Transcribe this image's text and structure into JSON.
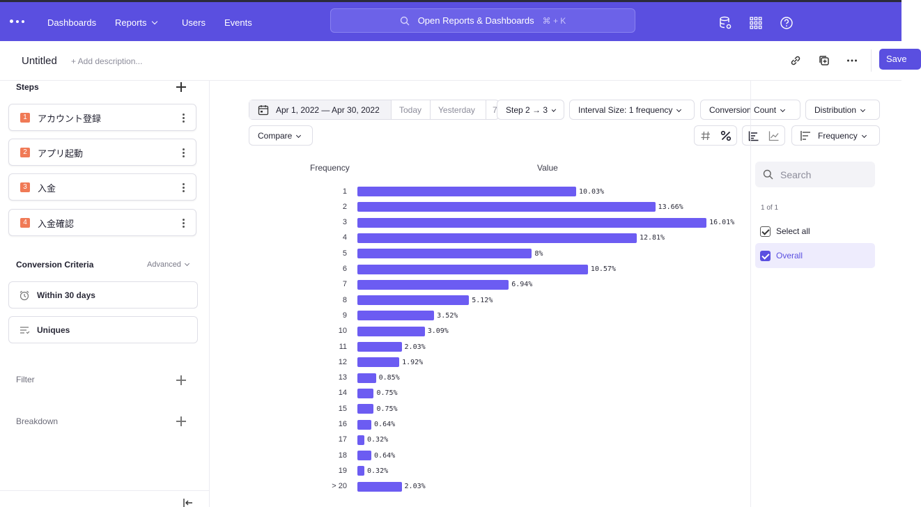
{
  "nav": {
    "links": [
      "Dashboards",
      "Reports",
      "Users",
      "Events"
    ],
    "search_placeholder": "Open Reports & Dashboards",
    "search_shortcut": "⌘ + K"
  },
  "header": {
    "title": "Untitled",
    "description_placeholder": "+ Add description...",
    "save_label": "Save"
  },
  "sidebar": {
    "steps_title": "Steps",
    "steps": [
      {
        "num": "1",
        "name": "アカウント登録"
      },
      {
        "num": "2",
        "name": "アプリ起動"
      },
      {
        "num": "3",
        "name": "入金"
      },
      {
        "num": "4",
        "name": "入金確認"
      }
    ],
    "criteria_title": "Conversion Criteria",
    "advanced_label": "Advanced",
    "window_label": "Within 30 days",
    "counting_label": "Uniques",
    "filter_title": "Filter",
    "breakdown_title": "Breakdown"
  },
  "controls": {
    "date_range": "Apr 1, 2022 — Apr 30, 2022",
    "today": "Today",
    "yesterday": "Yesterday",
    "seven": "7",
    "step_selector": "Step 2 → 3",
    "interval": "Interval Size: 1 frequency",
    "metric": "Conversion Count",
    "view": "Distribution",
    "compare": "Compare",
    "sort": "Frequency"
  },
  "chart": {
    "col_frequency": "Frequency",
    "col_value": "Value"
  },
  "chart_data": {
    "type": "bar",
    "orientation": "horizontal",
    "categories": [
      "1",
      "2",
      "3",
      "4",
      "5",
      "6",
      "7",
      "8",
      "9",
      "10",
      "11",
      "12",
      "13",
      "14",
      "15",
      "16",
      "17",
      "18",
      "19",
      "> 20"
    ],
    "values": [
      10.03,
      13.66,
      16.01,
      12.81,
      8,
      10.57,
      6.94,
      5.12,
      3.52,
      3.09,
      2.03,
      1.92,
      0.85,
      0.75,
      0.75,
      0.64,
      0.32,
      0.64,
      0.32,
      2.03
    ],
    "value_labels": [
      "10.03%",
      "13.66%",
      "16.01%",
      "12.81%",
      "8%",
      "10.57%",
      "6.94%",
      "5.12%",
      "3.52%",
      "3.09%",
      "2.03%",
      "1.92%",
      "0.85%",
      "0.75%",
      "0.75%",
      "0.64%",
      "0.32%",
      "0.64%",
      "0.32%",
      "2.03%"
    ],
    "xlabel": "Value",
    "ylabel": "Frequency",
    "color": "#6c5cf2"
  },
  "legend": {
    "search_placeholder": "Search",
    "count": "1 of 1",
    "select_all": "Select all",
    "series": "Overall"
  },
  "colors": {
    "brand": "#5a4fe0",
    "bar": "#6c5cf2",
    "step_badge": "#f07a56"
  }
}
